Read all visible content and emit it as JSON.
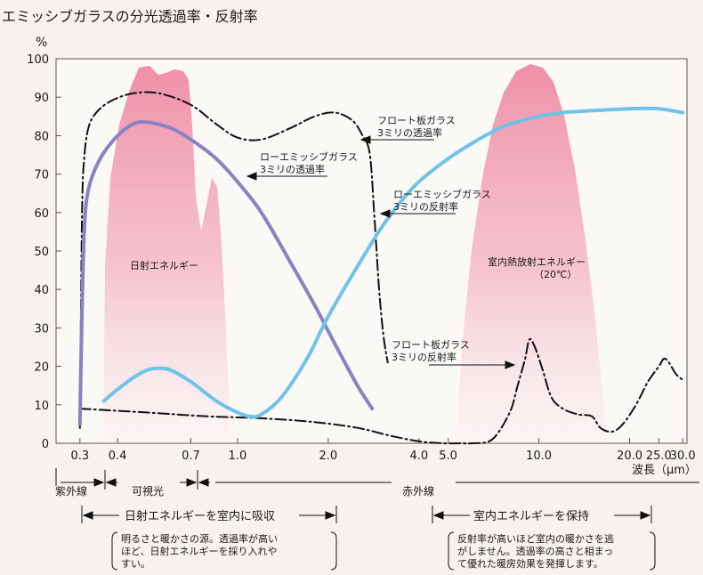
{
  "title": "エミッシブガラスの分光透過率・反射率",
  "chart_data": {
    "type": "line",
    "ylabel": "%",
    "ylim": [
      0,
      100
    ],
    "yticks": [
      0,
      10,
      20,
      30,
      40,
      50,
      60,
      70,
      80,
      90,
      100
    ],
    "xlabel": "波長（μm）",
    "x_scale": "log",
    "xlim": [
      0.25,
      31
    ],
    "xticks": [
      {
        "v": 0.3,
        "label": "0.3"
      },
      {
        "v": 0.4,
        "label": "0.4"
      },
      {
        "v": 0.7,
        "label": "0.7"
      },
      {
        "v": 1.0,
        "label": "1.0"
      },
      {
        "v": 2.0,
        "label": "2.0"
      },
      {
        "v": 4.0,
        "label": "4.0"
      },
      {
        "v": 5.0,
        "label": "5.0"
      },
      {
        "v": 10.0,
        "label": "10.0"
      },
      {
        "v": 20.0,
        "label": "20.0"
      },
      {
        "v": 25.0,
        "label": "25.0"
      },
      {
        "v": 30.0,
        "label": "30.0"
      }
    ],
    "series": [
      {
        "name": "フロート板ガラス 3ミリの透過率",
        "style": "dashdot",
        "color": "#111111",
        "x": [
          0.3,
          0.305,
          0.31,
          0.32,
          0.34,
          0.38,
          0.45,
          0.55,
          0.7,
          0.85,
          1.0,
          1.2,
          1.5,
          1.8,
          2.1,
          2.4,
          2.6,
          2.75,
          2.85,
          2.95,
          3.05,
          3.15
        ],
        "y": [
          4,
          60,
          74,
          82,
          86,
          89,
          91,
          91,
          88,
          83,
          79.5,
          79,
          82,
          85,
          86,
          84,
          80,
          75,
          58,
          40,
          28,
          21
        ]
      },
      {
        "name": "フロート板ガラス 3ミリの反射率",
        "style": "dashdot",
        "color": "#111111",
        "x": [
          0.3,
          0.5,
          0.8,
          1.2,
          1.8,
          2.5,
          3.2,
          4.0,
          4.8,
          5.5,
          6.0,
          7.0,
          8.0,
          8.5,
          9.0,
          9.3,
          9.7,
          10.3,
          11.0,
          12.0,
          13.5,
          15.0,
          16.0,
          17.5,
          19.0,
          21.0,
          23.0,
          25.0,
          26.0,
          27.0,
          28.5,
          30.0
        ],
        "y": [
          9,
          8,
          7,
          6.5,
          5.5,
          4,
          2,
          0.5,
          0,
          0,
          0,
          1,
          8,
          15,
          22,
          27,
          25,
          19,
          12,
          9,
          7.5,
          7,
          4,
          3,
          5,
          10,
          16,
          20,
          22,
          21,
          18,
          16.5
        ]
      },
      {
        "name": "ローエミッシブガラス 3ミリの透過率",
        "style": "solid",
        "color": "#8883c2",
        "x": [
          0.3,
          0.305,
          0.31,
          0.32,
          0.35,
          0.4,
          0.45,
          0.5,
          0.6,
          0.7,
          0.85,
          1.0,
          1.2,
          1.5,
          1.8,
          2.1,
          2.5,
          2.8
        ],
        "y": [
          5,
          35,
          55,
          66,
          74,
          80,
          83,
          83.5,
          82,
          79,
          74,
          68,
          60,
          47,
          36,
          26,
          15,
          9
        ]
      },
      {
        "name": "ローエミッシブガラス 3ミリの反射率",
        "style": "solid",
        "color": "#6fc3e6",
        "x": [
          0.36,
          0.4,
          0.45,
          0.5,
          0.55,
          0.6,
          0.7,
          0.85,
          1.0,
          1.1,
          1.2,
          1.4,
          1.7,
          2.0,
          2.5,
          3.0,
          3.5,
          4.0,
          5.0,
          6.0,
          7.0,
          8.0,
          10.0,
          12.0,
          15.0,
          20.0,
          25.0,
          30.0
        ],
        "y": [
          11,
          14,
          17,
          19,
          19.5,
          19,
          16,
          11,
          8,
          7,
          7.5,
          12,
          22,
          33,
          46,
          56,
          63,
          68,
          74,
          78,
          81,
          83,
          85,
          86,
          86.5,
          87,
          87,
          86
        ]
      }
    ],
    "annotations": [
      {
        "text": "日射エネルギー"
      },
      {
        "text": "室内熱放射エネルギー"
      },
      {
        "text": "（20℃）"
      }
    ]
  },
  "labels": {
    "float_trans_1": "フロート板ガラス",
    "float_trans_2": "3ミリの透過率",
    "lowe_trans_1": "ローエミッシブガラス",
    "lowe_trans_2": "3ミリの透過率",
    "lowe_refl_1": "ローエミッシブガラス",
    "lowe_refl_2": "3ミリの反射率",
    "float_refl_1": "フロート板ガラス",
    "float_refl_2": "3ミリの反射率",
    "solar": "日射エネルギー",
    "room_1": "室内熱放射エネルギー",
    "room_2": "（20℃）"
  },
  "bands": {
    "uv": "紫外線",
    "visible": "可視光",
    "infrared": "赤外線"
  },
  "notes": {
    "left_title": "日射エネルギーを室内に吸収",
    "left_body_1": "明るさと暖かさの源。透過率が高い",
    "left_body_2": "ほど、日射エネルギーを採り入れや",
    "left_body_3": "すい。",
    "right_title": "室内エネルギーを保持",
    "right_body_1": "反射率が高いほど室内の暖かさを逃",
    "right_body_2": "がしません。透過率の高さと相まっ",
    "right_body_3": "て優れた暖房効果を発揮します。"
  }
}
